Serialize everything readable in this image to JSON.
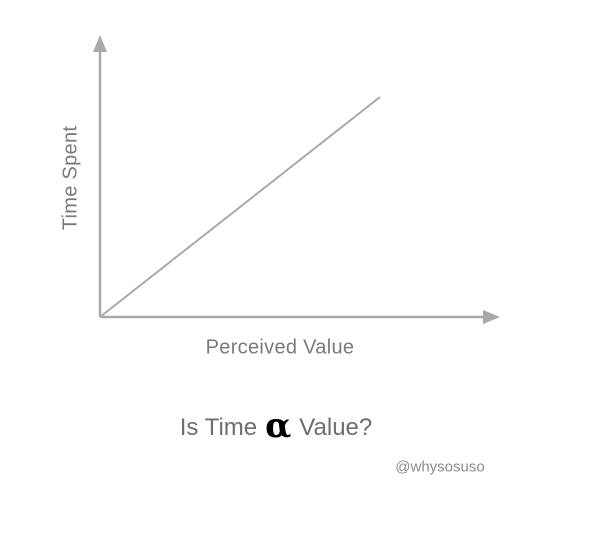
{
  "chart_data": {
    "type": "line",
    "title": "",
    "xlabel": "Perceived Value",
    "ylabel": "Time Spent",
    "ticks": false,
    "grid": false,
    "axis_color": "#a9a9a9",
    "line_color": "#a9a9a9",
    "series": [
      {
        "x": [
          0,
          1
        ],
        "y": [
          0,
          1
        ]
      }
    ]
  },
  "caption": {
    "before": "Is Time",
    "symbol": "α",
    "after": "Value?"
  },
  "handle": "@whysosuso"
}
